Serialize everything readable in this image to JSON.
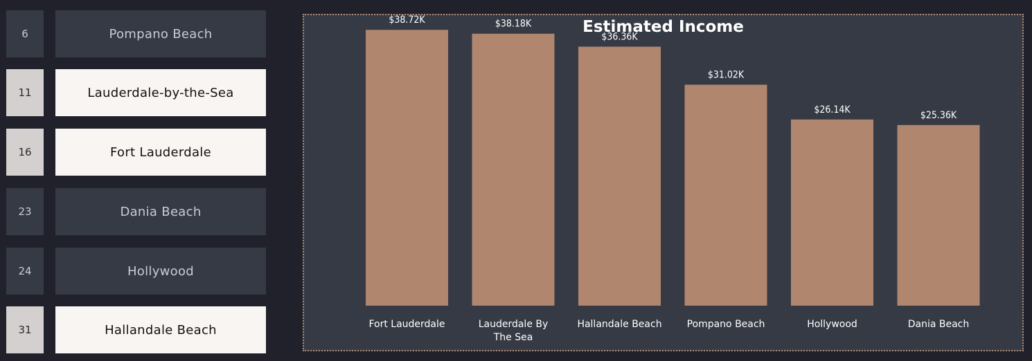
{
  "rank_list": [
    {
      "rank": "6",
      "city": "Pompano Beach",
      "selected": false
    },
    {
      "rank": "11",
      "city": "Lauderdale-by-the-Sea",
      "selected": true
    },
    {
      "rank": "16",
      "city": "Fort Lauderdale",
      "selected": true
    },
    {
      "rank": "23",
      "city": "Dania Beach",
      "selected": false
    },
    {
      "rank": "24",
      "city": "Hollywood",
      "selected": false
    },
    {
      "rank": "31",
      "city": "Hallandale Beach",
      "selected": true
    }
  ],
  "colors": {
    "bar": "#b0876e",
    "panel": "#353a45",
    "background": "#21212b"
  },
  "chart_data": {
    "type": "bar",
    "title": "Estimated Income",
    "categories": [
      [
        "Fort Lauderdale"
      ],
      [
        "Lauderdale By",
        "The Sea"
      ],
      [
        "Hallandale Beach"
      ],
      [
        "Pompano Beach"
      ],
      [
        "Hollywood"
      ],
      [
        "Dania Beach"
      ]
    ],
    "values": [
      38.72,
      38.18,
      36.36,
      31.02,
      26.14,
      25.36
    ],
    "data_labels": [
      "$38.72K",
      "$38.18K",
      "$36.36K",
      "$31.02K",
      "$26.14K",
      "$25.36K"
    ],
    "ylim": [
      0,
      40
    ],
    "grid": false,
    "legend": "none"
  }
}
